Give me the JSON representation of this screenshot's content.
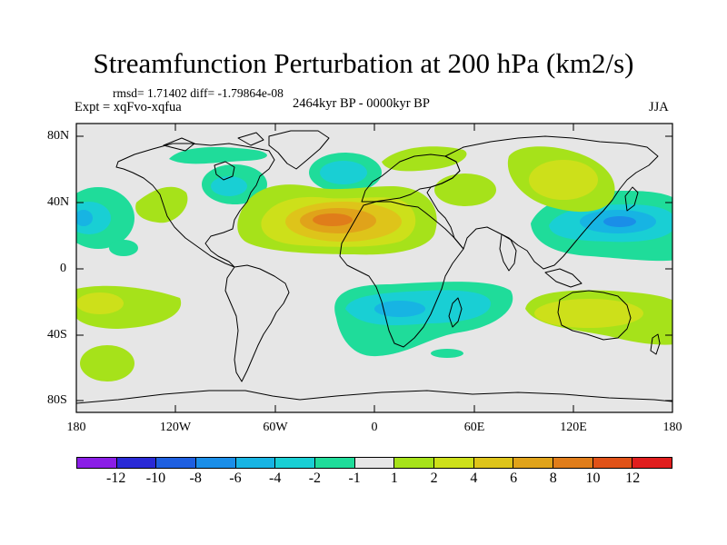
{
  "title": "Streamfunction Perturbation at 200 hPa (km2/s)",
  "stats": "rmsd= 1.71402  diff= -1.79864e-08",
  "expt": "Expt = xqFvo-xqfua",
  "period": "2464kyr BP - 0000kyr BP",
  "season": "JJA",
  "lat_labels": [
    "80N",
    "40N",
    "0",
    "40S",
    "80S"
  ],
  "lon_labels": [
    "180",
    "120W",
    "60W",
    "0",
    "60E",
    "120E",
    "180"
  ],
  "colorbar": {
    "colors": [
      "#8a1ee6",
      "#2a2ad6",
      "#1e5fe0",
      "#1a8ee8",
      "#17b4e3",
      "#19cfd4",
      "#1fdc9a",
      "#e6e6e6",
      "#a6e21a",
      "#cde01a",
      "#dec41a",
      "#e0a31a",
      "#e07d1a",
      "#e05218",
      "#e01e1e"
    ],
    "labels": [
      "-12",
      "-10",
      "-8",
      "-6",
      "-4",
      "-2",
      "-1",
      "1",
      "2",
      "4",
      "6",
      "8",
      "10",
      "12"
    ]
  }
}
